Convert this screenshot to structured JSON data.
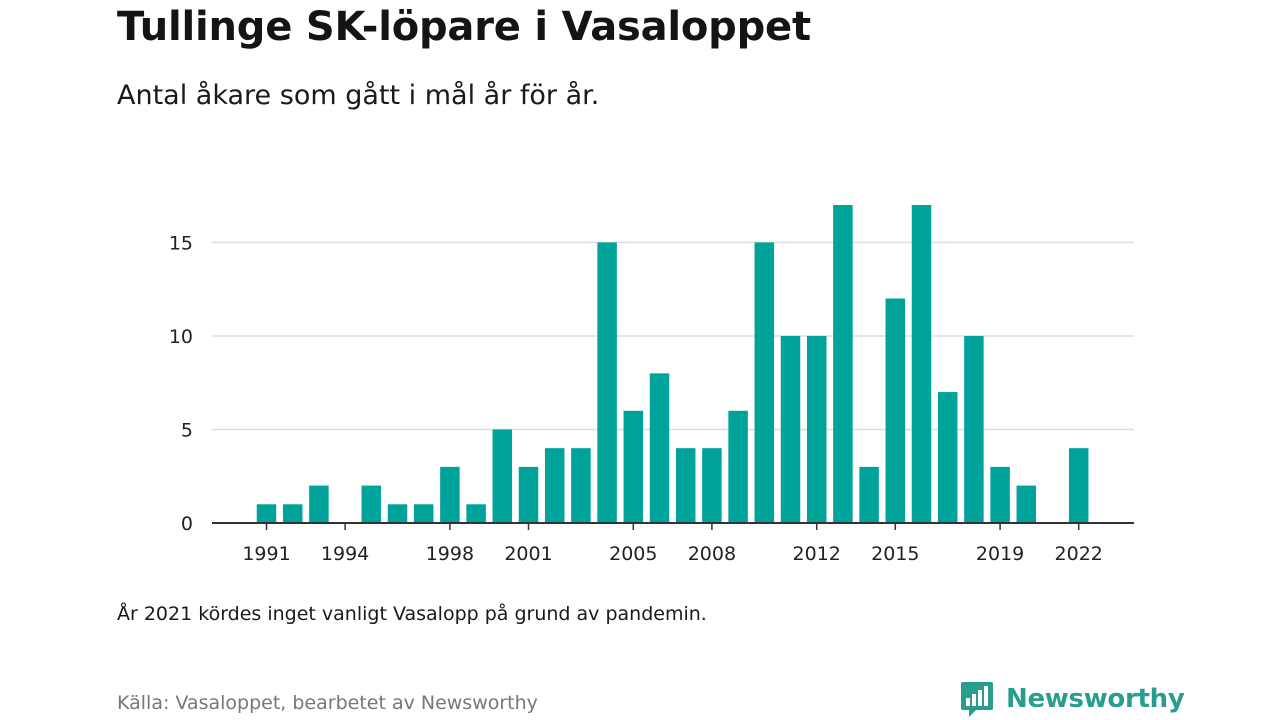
{
  "header": {
    "title": "Tullinge SK-löpare i Vasaloppet",
    "subtitle": "Antal åkare som gått i mål år för år."
  },
  "footer": {
    "note": "År 2021 kördes inget vanligt Vasalopp på grund av pandemin.",
    "source": "Källa: Vasaloppet, bearbetet av Newsworthy",
    "brand": "Newsworthy",
    "brand_icon": "bar-chart-speech-bubble-icon"
  },
  "colors": {
    "bar": "#00a39a",
    "brand": "#2a9d8f",
    "grid": "#dddddd",
    "axis": "#333333"
  },
  "chart_data": {
    "type": "bar",
    "title": "Tullinge SK-löpare i Vasaloppet",
    "subtitle": "Antal åkare som gått i mål år för år.",
    "xlabel": "",
    "ylabel": "",
    "categories": [
      1991,
      1992,
      1993,
      1994,
      1995,
      1996,
      1997,
      1998,
      1999,
      2000,
      2001,
      2002,
      2003,
      2004,
      2005,
      2006,
      2007,
      2008,
      2009,
      2010,
      2011,
      2012,
      2013,
      2014,
      2015,
      2016,
      2017,
      2018,
      2019,
      2020,
      2021,
      2022
    ],
    "values": [
      1,
      1,
      2,
      0,
      2,
      1,
      1,
      3,
      1,
      5,
      3,
      4,
      4,
      15,
      6,
      8,
      4,
      4,
      6,
      15,
      10,
      10,
      17,
      3,
      12,
      17,
      7,
      10,
      3,
      2,
      null,
      4
    ],
    "ylim": [
      0,
      18
    ],
    "yticks": [
      0,
      5,
      10,
      15
    ],
    "xticks": [
      1991,
      1994,
      1998,
      2001,
      2005,
      2008,
      2012,
      2015,
      2019,
      2022
    ],
    "grid": true,
    "legend": "none"
  }
}
